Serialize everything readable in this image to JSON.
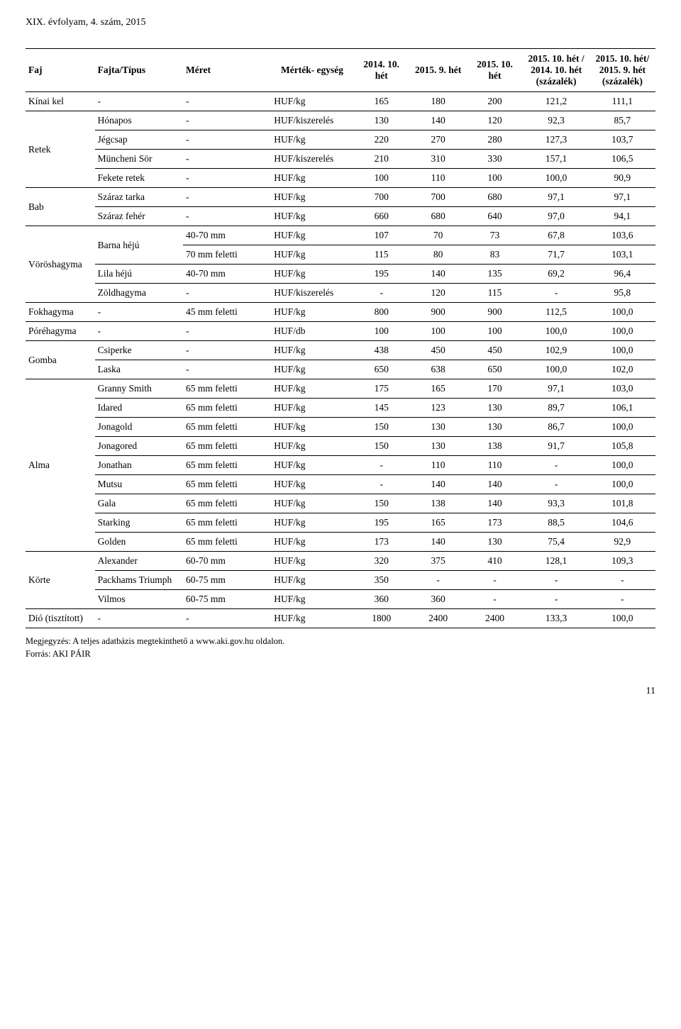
{
  "page_header": "XIX. évfolyam, 4. szám, 2015",
  "columns": {
    "c0": "Faj",
    "c1": "Fajta/Típus",
    "c2": "Méret",
    "c3": "Mérték-\negység",
    "c4": "2014.\n10. hét",
    "c5": "2015.\n9. hét",
    "c6": "2015.\n10. hét",
    "c7": "2015. 10. hét /\n2014. 10. hét\n(százalék)",
    "c8": "2015. 10. hét/\n2015. 9. hét\n(százalék)"
  },
  "rows": [
    {
      "faj": "Kínai kel",
      "fajta": "-",
      "meret": "-",
      "unit": "HUF/kg",
      "v1": "165",
      "v2": "180",
      "v3": "200",
      "p1": "121,2",
      "p2": "111,1",
      "group_end": true
    },
    {
      "faj": "Retek",
      "faj_rows": 4,
      "fajta": "Hónapos",
      "meret": "-",
      "unit": "HUF/kiszerelés",
      "v1": "130",
      "v2": "140",
      "v3": "120",
      "p1": "92,3",
      "p2": "85,7",
      "sub_end": true
    },
    {
      "fajta": "Jégcsap",
      "meret": "-",
      "unit": "HUF/kg",
      "v1": "220",
      "v2": "270",
      "v3": "280",
      "p1": "127,3",
      "p2": "103,7",
      "sub_end": true
    },
    {
      "fajta": "Müncheni Sör",
      "meret": "-",
      "unit": "HUF/kiszerelés",
      "v1": "210",
      "v2": "310",
      "v3": "330",
      "p1": "157,1",
      "p2": "106,5",
      "sub_end": true
    },
    {
      "fajta": "Fekete retek",
      "meret": "-",
      "unit": "HUF/kg",
      "v1": "100",
      "v2": "110",
      "v3": "100",
      "p1": "100,0",
      "p2": "90,9",
      "group_end": true
    },
    {
      "faj": "Bab",
      "faj_rows": 2,
      "fajta": "Száraz tarka",
      "meret": "-",
      "unit": "HUF/kg",
      "v1": "700",
      "v2": "700",
      "v3": "680",
      "p1": "97,1",
      "p2": "97,1",
      "sub_end": true
    },
    {
      "fajta": "Száraz fehér",
      "meret": "-",
      "unit": "HUF/kg",
      "v1": "660",
      "v2": "680",
      "v3": "640",
      "p1": "97,0",
      "p2": "94,1",
      "group_end": true
    },
    {
      "faj": "Vöröshagyma",
      "faj_rows": 4,
      "fajta": "Barna héjú",
      "fajta_rows": 2,
      "meret": "40-70 mm",
      "unit": "HUF/kg",
      "v1": "107",
      "v2": "70",
      "v3": "73",
      "p1": "67,8",
      "p2": "103,6",
      "sub_end": true
    },
    {
      "meret": "70 mm feletti",
      "unit": "HUF/kg",
      "v1": "115",
      "v2": "80",
      "v3": "83",
      "p1": "71,7",
      "p2": "103,1",
      "sub_end": true
    },
    {
      "fajta": "Lila héjú",
      "meret": "40-70 mm",
      "unit": "HUF/kg",
      "v1": "195",
      "v2": "140",
      "v3": "135",
      "p1": "69,2",
      "p2": "96,4",
      "sub_end": true
    },
    {
      "fajta": "Zöldhagyma",
      "meret": "-",
      "unit": "HUF/kiszerelés",
      "v1": "-",
      "v2": "120",
      "v3": "115",
      "p1": "-",
      "p2": "95,8",
      "group_end": true
    },
    {
      "faj": "Fokhagyma",
      "fajta": "-",
      "meret": "45 mm feletti",
      "unit": "HUF/kg",
      "v1": "800",
      "v2": "900",
      "v3": "900",
      "p1": "112,5",
      "p2": "100,0",
      "group_end": true
    },
    {
      "faj": "Póréhagyma",
      "fajta": "-",
      "meret": "-",
      "unit": "HUF/db",
      "v1": "100",
      "v2": "100",
      "v3": "100",
      "p1": "100,0",
      "p2": "100,0",
      "group_end": true
    },
    {
      "faj": "Gomba",
      "faj_rows": 2,
      "fajta": "Csiperke",
      "meret": "-",
      "unit": "HUF/kg",
      "v1": "438",
      "v2": "450",
      "v3": "450",
      "p1": "102,9",
      "p2": "100,0",
      "sub_end": true
    },
    {
      "fajta": "Laska",
      "meret": "-",
      "unit": "HUF/kg",
      "v1": "650",
      "v2": "638",
      "v3": "650",
      "p1": "100,0",
      "p2": "102,0",
      "group_end": true
    },
    {
      "faj": "Alma",
      "faj_rows": 9,
      "fajta": "Granny Smith",
      "meret": "65 mm feletti",
      "unit": "HUF/kg",
      "v1": "175",
      "v2": "165",
      "v3": "170",
      "p1": "97,1",
      "p2": "103,0",
      "sub_end": true
    },
    {
      "fajta": "Idared",
      "meret": "65 mm feletti",
      "unit": "HUF/kg",
      "v1": "145",
      "v2": "123",
      "v3": "130",
      "p1": "89,7",
      "p2": "106,1",
      "sub_end": true
    },
    {
      "fajta": "Jonagold",
      "meret": "65 mm feletti",
      "unit": "HUF/kg",
      "v1": "150",
      "v2": "130",
      "v3": "130",
      "p1": "86,7",
      "p2": "100,0",
      "sub_end": true
    },
    {
      "fajta": "Jonagored",
      "meret": "65 mm feletti",
      "unit": "HUF/kg",
      "v1": "150",
      "v2": "130",
      "v3": "138",
      "p1": "91,7",
      "p2": "105,8",
      "sub_end": true
    },
    {
      "fajta": "Jonathan",
      "meret": "65 mm feletti",
      "unit": "HUF/kg",
      "v1": "-",
      "v2": "110",
      "v3": "110",
      "p1": "-",
      "p2": "100,0",
      "sub_end": true
    },
    {
      "fajta": "Mutsu",
      "meret": "65 mm feletti",
      "unit": "HUF/kg",
      "v1": "-",
      "v2": "140",
      "v3": "140",
      "p1": "-",
      "p2": "100,0",
      "sub_end": true
    },
    {
      "fajta": "Gala",
      "meret": "65 mm feletti",
      "unit": "HUF/kg",
      "v1": "150",
      "v2": "138",
      "v3": "140",
      "p1": "93,3",
      "p2": "101,8",
      "sub_end": true
    },
    {
      "fajta": "Starking",
      "meret": "65 mm feletti",
      "unit": "HUF/kg",
      "v1": "195",
      "v2": "165",
      "v3": "173",
      "p1": "88,5",
      "p2": "104,6",
      "sub_end": true
    },
    {
      "fajta": "Golden",
      "meret": "65 mm feletti",
      "unit": "HUF/kg",
      "v1": "173",
      "v2": "140",
      "v3": "130",
      "p1": "75,4",
      "p2": "92,9",
      "group_end": true
    },
    {
      "faj": "Körte",
      "faj_rows": 3,
      "fajta": "Alexander",
      "meret": "60-70 mm",
      "unit": "HUF/kg",
      "v1": "320",
      "v2": "375",
      "v3": "410",
      "p1": "128,1",
      "p2": "109,3",
      "sub_end": true
    },
    {
      "fajta": "Packhams Triumph",
      "meret": "60-75 mm",
      "unit": "HUF/kg",
      "v1": "350",
      "v2": "-",
      "v3": "-",
      "p1": "-",
      "p2": "-",
      "sub_end": true
    },
    {
      "fajta": "Vilmos",
      "meret": "60-75 mm",
      "unit": "HUF/kg",
      "v1": "360",
      "v2": "360",
      "v3": "-",
      "p1": "-",
      "p2": "-",
      "group_end": true
    },
    {
      "faj": "Dió (tisztított)",
      "fajta": "-",
      "meret": "-",
      "unit": "HUF/kg",
      "v1": "1800",
      "v2": "2400",
      "v3": "2400",
      "p1": "133,3",
      "p2": "100,0",
      "last": true
    }
  ],
  "note": {
    "line1": "Megjegyzés: A teljes adatbázis megtekinthető a www.aki.gov.hu oldalon.",
    "line2": "Forrás: AKI PÁIR"
  },
  "page_number": "11",
  "col_widths": [
    "11%",
    "14%",
    "14%",
    "13%",
    "9%",
    "9%",
    "9%",
    "10.5%",
    "10.5%"
  ]
}
